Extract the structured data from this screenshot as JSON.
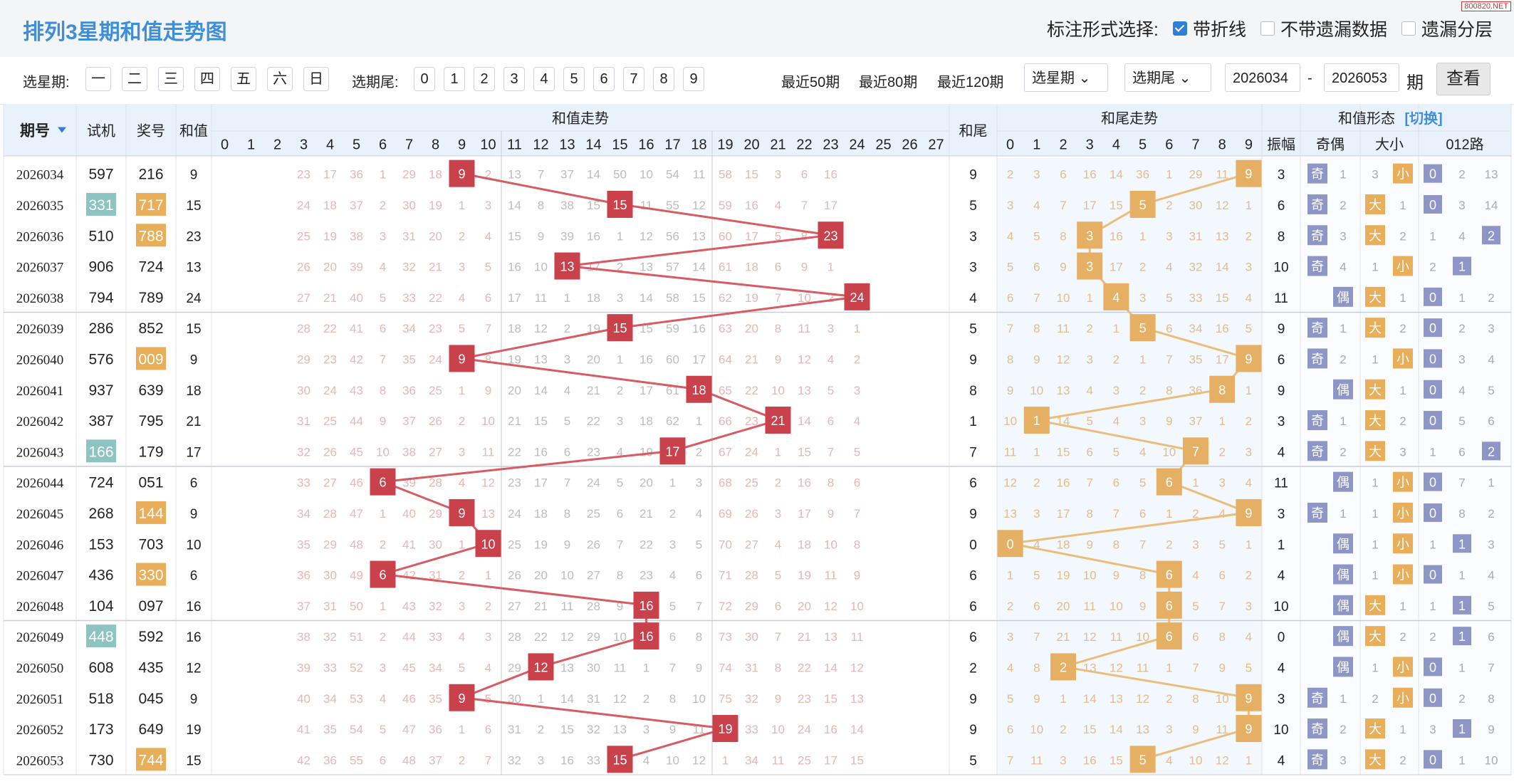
{
  "page": {
    "title": "排列3星期和值走势图",
    "watermark": "800820.NET",
    "display_label": "标注形式选择:",
    "options": [
      {
        "label": "带折线",
        "checked": true
      },
      {
        "label": "不带遗漏数据",
        "checked": false
      },
      {
        "label": "遗漏分层",
        "checked": false
      }
    ]
  },
  "filters": {
    "weekday_label": "选星期:",
    "weekdays": [
      "一",
      "二",
      "三",
      "四",
      "五",
      "六",
      "日"
    ],
    "tail_label": "选期尾:",
    "tails": [
      "0",
      "1",
      "2",
      "3",
      "4",
      "5",
      "6",
      "7",
      "8",
      "9"
    ],
    "recent": [
      "最近50期",
      "最近80期",
      "最近120期"
    ],
    "weekday_select": "选星期",
    "tail_select": "选期尾",
    "from": "2026034",
    "dash": "-",
    "to": "2026053",
    "period_unit": "期",
    "query_button": "查看"
  },
  "colors": {
    "sum_box": "#c8414b",
    "sum_line": "#d65b63",
    "tail_box": "#e5b063",
    "tail_line": "#ebbd7b",
    "blue_badge": "#8e96c8",
    "teal_bg": "#8dc3c1",
    "orange_bg": "#e8ae5a",
    "header_bg": "#e9f1fb",
    "header_text": "#3f8fd8"
  },
  "chart_data": {
    "type": "table",
    "headers": {
      "issue": "期号",
      "trial": "试机",
      "draw": "奖号",
      "sum": "和值",
      "sum_trend": "和值走势",
      "sum_tail": "和尾",
      "tail_trend": "和尾走势",
      "shape": "和值形态",
      "switch": "[切换]",
      "amp": "振幅",
      "odd_even": "奇偶",
      "big_small": "大小",
      "road": "012路"
    },
    "sum_cols": [
      "0",
      "1",
      "2",
      "3",
      "4",
      "5",
      "6",
      "7",
      "8",
      "9",
      "10",
      "11",
      "12",
      "13",
      "14",
      "15",
      "16",
      "17",
      "18",
      "19",
      "20",
      "21",
      "22",
      "23",
      "24",
      "25",
      "26",
      "27"
    ],
    "tail_cols": [
      "0",
      "1",
      "2",
      "3",
      "4",
      "5",
      "6",
      "7",
      "8",
      "9"
    ],
    "rows": [
      {
        "issue": "2026034",
        "trial": "597",
        "trial_hl": false,
        "draw": "216",
        "draw_hl": false,
        "sum": "9",
        "tail": "9",
        "amp": "3",
        "oe": "奇",
        "bs": "小",
        "road": "0"
      },
      {
        "issue": "2026035",
        "trial": "331",
        "trial_hl": true,
        "draw": "717",
        "draw_hl": true,
        "sum": "15",
        "tail": "5",
        "amp": "6",
        "oe": "奇",
        "bs": "大",
        "road": "0"
      },
      {
        "issue": "2026036",
        "trial": "510",
        "trial_hl": false,
        "draw": "788",
        "draw_hl": true,
        "sum": "23",
        "tail": "3",
        "amp": "8",
        "oe": "奇",
        "bs": "大",
        "road": "2"
      },
      {
        "issue": "2026037",
        "trial": "906",
        "trial_hl": false,
        "draw": "724",
        "draw_hl": false,
        "sum": "13",
        "tail": "3",
        "amp": "10",
        "oe": "奇",
        "bs": "小",
        "road": "1"
      },
      {
        "issue": "2026038",
        "trial": "794",
        "trial_hl": false,
        "draw": "789",
        "draw_hl": false,
        "sum": "24",
        "tail": "4",
        "amp": "11",
        "oe": "偶",
        "bs": "大",
        "road": "0"
      },
      {
        "issue": "2026039",
        "trial": "286",
        "trial_hl": false,
        "draw": "852",
        "draw_hl": false,
        "sum": "15",
        "tail": "5",
        "amp": "9",
        "oe": "奇",
        "bs": "大",
        "road": "0"
      },
      {
        "issue": "2026040",
        "trial": "576",
        "trial_hl": false,
        "draw": "009",
        "draw_hl": true,
        "sum": "9",
        "tail": "9",
        "amp": "6",
        "oe": "奇",
        "bs": "小",
        "road": "0"
      },
      {
        "issue": "2026041",
        "trial": "937",
        "trial_hl": false,
        "draw": "639",
        "draw_hl": false,
        "sum": "18",
        "tail": "8",
        "amp": "9",
        "oe": "偶",
        "bs": "大",
        "road": "0"
      },
      {
        "issue": "2026042",
        "trial": "387",
        "trial_hl": false,
        "draw": "795",
        "draw_hl": false,
        "sum": "21",
        "tail": "1",
        "amp": "3",
        "oe": "奇",
        "bs": "大",
        "road": "0"
      },
      {
        "issue": "2026043",
        "trial": "166",
        "trial_hl": true,
        "draw": "179",
        "draw_hl": false,
        "sum": "17",
        "tail": "7",
        "amp": "4",
        "oe": "奇",
        "bs": "大",
        "road": "2"
      },
      {
        "issue": "2026044",
        "trial": "724",
        "trial_hl": false,
        "draw": "051",
        "draw_hl": false,
        "sum": "6",
        "tail": "6",
        "amp": "11",
        "oe": "偶",
        "bs": "小",
        "road": "0"
      },
      {
        "issue": "2026045",
        "trial": "268",
        "trial_hl": false,
        "draw": "144",
        "draw_hl": true,
        "sum": "9",
        "tail": "9",
        "amp": "3",
        "oe": "奇",
        "bs": "小",
        "road": "0"
      },
      {
        "issue": "2026046",
        "trial": "153",
        "trial_hl": false,
        "draw": "703",
        "draw_hl": false,
        "sum": "10",
        "tail": "0",
        "amp": "1",
        "oe": "偶",
        "bs": "小",
        "road": "1"
      },
      {
        "issue": "2026047",
        "trial": "436",
        "trial_hl": false,
        "draw": "330",
        "draw_hl": true,
        "sum": "6",
        "tail": "6",
        "amp": "4",
        "oe": "偶",
        "bs": "小",
        "road": "0"
      },
      {
        "issue": "2026048",
        "trial": "104",
        "trial_hl": false,
        "draw": "097",
        "draw_hl": false,
        "sum": "16",
        "tail": "6",
        "amp": "10",
        "oe": "偶",
        "bs": "大",
        "road": "1"
      },
      {
        "issue": "2026049",
        "trial": "448",
        "trial_hl": true,
        "draw": "592",
        "draw_hl": false,
        "sum": "16",
        "tail": "6",
        "amp": "0",
        "oe": "偶",
        "bs": "大",
        "road": "1"
      },
      {
        "issue": "2026050",
        "trial": "608",
        "trial_hl": false,
        "draw": "435",
        "draw_hl": false,
        "sum": "12",
        "tail": "2",
        "amp": "4",
        "oe": "偶",
        "bs": "小",
        "road": "0"
      },
      {
        "issue": "2026051",
        "trial": "518",
        "trial_hl": false,
        "draw": "045",
        "draw_hl": false,
        "sum": "9",
        "tail": "9",
        "amp": "3",
        "oe": "奇",
        "bs": "小",
        "road": "0"
      },
      {
        "issue": "2026052",
        "trial": "173",
        "trial_hl": false,
        "draw": "649",
        "draw_hl": false,
        "sum": "19",
        "tail": "9",
        "amp": "10",
        "oe": "奇",
        "bs": "大",
        "road": "1"
      },
      {
        "issue": "2026053",
        "trial": "730",
        "trial_hl": false,
        "draw": "744",
        "draw_hl": true,
        "sum": "15",
        "tail": "5",
        "amp": "4",
        "oe": "奇",
        "bs": "大",
        "road": "0"
      }
    ],
    "sum_missing": [
      [
        "",
        "",
        "",
        "23",
        "17",
        "36",
        "1",
        "29",
        "18",
        "",
        "2",
        "13",
        "7",
        "37",
        "14",
        "50",
        "10",
        "54",
        "11",
        "58",
        "15",
        "3",
        "6",
        "16",
        "",
        "",
        "",
        ""
      ],
      [
        "",
        "",
        "",
        "24",
        "18",
        "37",
        "2",
        "30",
        "19",
        "1",
        "3",
        "14",
        "8",
        "38",
        "15",
        "",
        "11",
        "55",
        "12",
        "59",
        "16",
        "4",
        "7",
        "17",
        "",
        "",
        "",
        ""
      ],
      [
        "",
        "",
        "",
        "25",
        "19",
        "38",
        "3",
        "31",
        "20",
        "2",
        "4",
        "15",
        "9",
        "39",
        "16",
        "1",
        "12",
        "56",
        "13",
        "60",
        "17",
        "5",
        "8",
        "",
        "",
        "",
        "",
        ""
      ],
      [
        "",
        "",
        "",
        "26",
        "20",
        "39",
        "4",
        "32",
        "21",
        "3",
        "5",
        "16",
        "10",
        "",
        "17",
        "2",
        "13",
        "57",
        "14",
        "61",
        "18",
        "6",
        "9",
        "1",
        "",
        "",
        "",
        ""
      ],
      [
        "",
        "",
        "",
        "27",
        "21",
        "40",
        "5",
        "33",
        "22",
        "4",
        "6",
        "17",
        "11",
        "1",
        "18",
        "3",
        "14",
        "58",
        "15",
        "62",
        "19",
        "7",
        "10",
        "2",
        "",
        "",
        "",
        ""
      ],
      [
        "",
        "",
        "",
        "28",
        "22",
        "41",
        "6",
        "34",
        "23",
        "5",
        "7",
        "18",
        "12",
        "2",
        "19",
        "",
        "15",
        "59",
        "16",
        "63",
        "20",
        "8",
        "11",
        "3",
        "1",
        "",
        "",
        ""
      ],
      [
        "",
        "",
        "",
        "29",
        "23",
        "42",
        "7",
        "35",
        "24",
        "",
        "8",
        "19",
        "13",
        "3",
        "20",
        "1",
        "16",
        "60",
        "17",
        "64",
        "21",
        "9",
        "12",
        "4",
        "2",
        "",
        "",
        ""
      ],
      [
        "",
        "",
        "",
        "30",
        "24",
        "43",
        "8",
        "36",
        "25",
        "1",
        "9",
        "20",
        "14",
        "4",
        "21",
        "2",
        "17",
        "61",
        "",
        "65",
        "22",
        "10",
        "13",
        "5",
        "3",
        "",
        "",
        ""
      ],
      [
        "",
        "",
        "",
        "31",
        "25",
        "44",
        "9",
        "37",
        "26",
        "2",
        "10",
        "21",
        "15",
        "5",
        "22",
        "3",
        "18",
        "62",
        "1",
        "66",
        "23",
        "",
        "14",
        "6",
        "4",
        "",
        "",
        ""
      ],
      [
        "",
        "",
        "",
        "32",
        "26",
        "45",
        "10",
        "38",
        "27",
        "3",
        "11",
        "22",
        "16",
        "6",
        "23",
        "4",
        "19",
        "",
        "2",
        "67",
        "24",
        "1",
        "15",
        "7",
        "5",
        "",
        "",
        ""
      ],
      [
        "",
        "",
        "",
        "33",
        "27",
        "46",
        "",
        "39",
        "28",
        "4",
        "12",
        "23",
        "17",
        "7",
        "24",
        "5",
        "20",
        "1",
        "3",
        "68",
        "25",
        "2",
        "16",
        "8",
        "6",
        "",
        "",
        ""
      ],
      [
        "",
        "",
        "",
        "34",
        "28",
        "47",
        "1",
        "40",
        "29",
        "",
        "13",
        "24",
        "18",
        "8",
        "25",
        "6",
        "21",
        "2",
        "4",
        "69",
        "26",
        "3",
        "17",
        "9",
        "7",
        "",
        "",
        ""
      ],
      [
        "",
        "",
        "",
        "35",
        "29",
        "48",
        "2",
        "41",
        "30",
        "1",
        "",
        "25",
        "19",
        "9",
        "26",
        "7",
        "22",
        "3",
        "5",
        "70",
        "27",
        "4",
        "18",
        "10",
        "8",
        "",
        "",
        ""
      ],
      [
        "",
        "",
        "",
        "36",
        "30",
        "49",
        "",
        "42",
        "31",
        "2",
        "1",
        "26",
        "20",
        "10",
        "27",
        "8",
        "23",
        "4",
        "6",
        "71",
        "28",
        "5",
        "19",
        "11",
        "9",
        "",
        "",
        ""
      ],
      [
        "",
        "",
        "",
        "37",
        "31",
        "50",
        "1",
        "43",
        "32",
        "3",
        "2",
        "27",
        "21",
        "11",
        "28",
        "9",
        "",
        "5",
        "7",
        "72",
        "29",
        "6",
        "20",
        "12",
        "10",
        "",
        "",
        ""
      ],
      [
        "",
        "",
        "",
        "38",
        "32",
        "51",
        "2",
        "44",
        "33",
        "4",
        "3",
        "28",
        "22",
        "12",
        "29",
        "10",
        "",
        "6",
        "8",
        "73",
        "30",
        "7",
        "21",
        "13",
        "11",
        "",
        "",
        ""
      ],
      [
        "",
        "",
        "",
        "39",
        "33",
        "52",
        "3",
        "45",
        "34",
        "5",
        "4",
        "29",
        "",
        "13",
        "30",
        "11",
        "1",
        "7",
        "9",
        "74",
        "31",
        "8",
        "22",
        "14",
        "12",
        "",
        "",
        ""
      ],
      [
        "",
        "",
        "",
        "40",
        "34",
        "53",
        "4",
        "46",
        "35",
        "",
        "5",
        "30",
        "1",
        "14",
        "31",
        "12",
        "2",
        "8",
        "10",
        "75",
        "32",
        "9",
        "23",
        "15",
        "13",
        "",
        "",
        ""
      ],
      [
        "",
        "",
        "",
        "41",
        "35",
        "54",
        "5",
        "47",
        "36",
        "1",
        "6",
        "31",
        "2",
        "15",
        "32",
        "13",
        "3",
        "9",
        "11",
        "",
        "33",
        "10",
        "24",
        "16",
        "14",
        "",
        "",
        ""
      ],
      [
        "",
        "",
        "",
        "42",
        "36",
        "55",
        "6",
        "48",
        "37",
        "2",
        "7",
        "32",
        "3",
        "16",
        "33",
        "",
        "4",
        "10",
        "12",
        "1",
        "34",
        "11",
        "25",
        "17",
        "15",
        "",
        "",
        ""
      ]
    ],
    "tail_missing": [
      [
        "2",
        "3",
        "6",
        "16",
        "14",
        "36",
        "1",
        "29",
        "11",
        ""
      ],
      [
        "3",
        "4",
        "7",
        "17",
        "15",
        "",
        "2",
        "30",
        "12",
        "1"
      ],
      [
        "4",
        "5",
        "8",
        "",
        "16",
        "1",
        "3",
        "31",
        "13",
        "2"
      ],
      [
        "5",
        "6",
        "9",
        "",
        "17",
        "2",
        "4",
        "32",
        "14",
        "3"
      ],
      [
        "6",
        "7",
        "10",
        "1",
        "",
        "3",
        "5",
        "33",
        "15",
        "4"
      ],
      [
        "7",
        "8",
        "11",
        "2",
        "1",
        "",
        "6",
        "34",
        "16",
        "5"
      ],
      [
        "8",
        "9",
        "12",
        "3",
        "2",
        "1",
        "7",
        "35",
        "17",
        ""
      ],
      [
        "9",
        "10",
        "13",
        "4",
        "3",
        "2",
        "8",
        "36",
        "",
        "1"
      ],
      [
        "10",
        "",
        "14",
        "5",
        "4",
        "3",
        "9",
        "37",
        "1",
        "2"
      ],
      [
        "11",
        "1",
        "15",
        "6",
        "5",
        "4",
        "10",
        "",
        "2",
        "3"
      ],
      [
        "12",
        "2",
        "16",
        "7",
        "6",
        "5",
        "",
        "1",
        "3",
        "4"
      ],
      [
        "13",
        "3",
        "17",
        "8",
        "7",
        "6",
        "1",
        "2",
        "4",
        ""
      ],
      [
        "",
        "4",
        "18",
        "9",
        "8",
        "7",
        "2",
        "3",
        "5",
        "1"
      ],
      [
        "1",
        "5",
        "19",
        "10",
        "9",
        "8",
        "",
        "4",
        "6",
        "2"
      ],
      [
        "2",
        "6",
        "20",
        "11",
        "10",
        "9",
        "",
        "5",
        "7",
        "3"
      ],
      [
        "3",
        "7",
        "21",
        "12",
        "11",
        "10",
        "",
        "6",
        "8",
        "4"
      ],
      [
        "4",
        "8",
        "",
        "13",
        "12",
        "11",
        "1",
        "7",
        "9",
        "5"
      ],
      [
        "5",
        "9",
        "1",
        "14",
        "13",
        "12",
        "2",
        "8",
        "10",
        ""
      ],
      [
        "6",
        "10",
        "2",
        "15",
        "14",
        "13",
        "3",
        "9",
        "11",
        ""
      ],
      [
        "7",
        "11",
        "3",
        "16",
        "15",
        "",
        "4",
        "10",
        "12",
        "1"
      ]
    ],
    "oe_missing": [
      "1",
      "2",
      "3",
      "4",
      "",
      "1",
      "2",
      "",
      "1",
      "2",
      "",
      "1",
      "",
      "",
      "",
      "",
      "",
      "1",
      "2",
      "3"
    ],
    "bs_missing": [
      "3",
      "1",
      "2",
      "1",
      "1",
      "2",
      "1",
      "1",
      "2",
      "3",
      "1",
      "1",
      "1",
      "1",
      "1",
      "2",
      "1",
      "2",
      "1",
      "2"
    ],
    "road_missing": [
      [
        "2",
        "13"
      ],
      [
        "3",
        "14"
      ],
      [
        "1",
        "4"
      ],
      [
        "2",
        ""
      ],
      [
        "1",
        "2"
      ],
      [
        "2",
        "3"
      ],
      [
        "3",
        "4"
      ],
      [
        "4",
        "5"
      ],
      [
        "5",
        "6"
      ],
      [
        "1",
        "6"
      ],
      [
        "7",
        "1"
      ],
      [
        "8",
        "2"
      ],
      [
        "1",
        "3"
      ],
      [
        "1",
        "4"
      ],
      [
        "1",
        "5"
      ],
      [
        "2",
        "6"
      ],
      [
        "1",
        "7"
      ],
      [
        "2",
        "8"
      ],
      [
        "3",
        "9"
      ],
      [
        "1",
        "10"
      ]
    ]
  }
}
